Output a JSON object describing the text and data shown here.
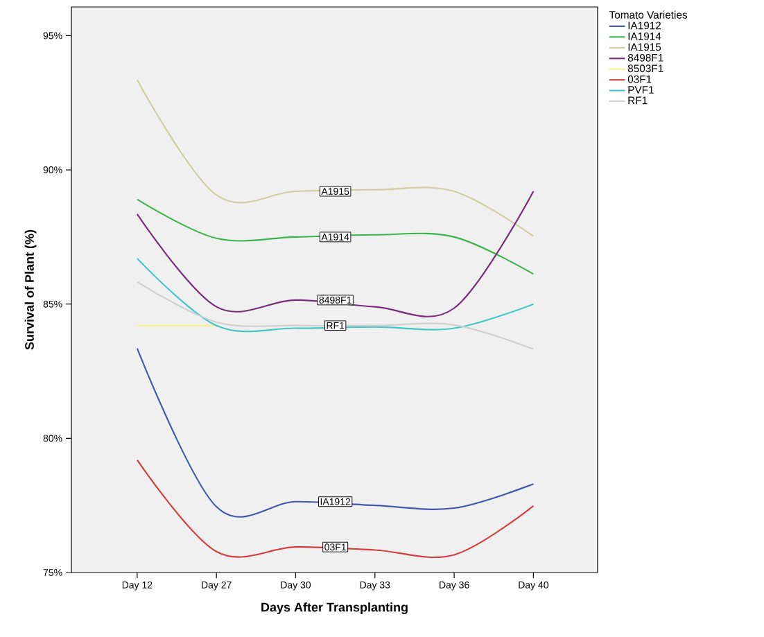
{
  "chart_data": {
    "type": "line",
    "xlabel": "Days After Transplanting",
    "ylabel": "Survival of Plant (%)",
    "legend_title": "Tomato Varieties",
    "categories": [
      "Day 12",
      "Day 27",
      "Day 30",
      "Day 33",
      "Day 36",
      "Day 40"
    ],
    "series": [
      {
        "name": "IA1912",
        "color": "#3e58ac",
        "values": [
          83.35,
          77.45,
          77.64,
          77.5,
          77.4,
          78.3
        ]
      },
      {
        "name": "IA1914",
        "color": "#3ab54a",
        "values": [
          88.9,
          87.45,
          87.5,
          87.58,
          87.5,
          86.12
        ]
      },
      {
        "name": "IA1915",
        "color": "#d2cc9e",
        "values": [
          93.35,
          89.06,
          89.2,
          89.26,
          89.2,
          87.53
        ]
      },
      {
        "name": "8498F1",
        "color": "#7b2b7e",
        "values": [
          88.35,
          84.9,
          85.15,
          84.9,
          84.85,
          89.2
        ]
      },
      {
        "name": "8503F1",
        "color": "#f5f58a",
        "values": [
          84.2,
          84.2,
          null,
          null,
          null,
          null
        ]
      },
      {
        "name": "03F1",
        "color": "#d43d3d",
        "values": [
          79.19,
          75.78,
          75.95,
          75.84,
          75.66,
          77.48
        ]
      },
      {
        "name": "PVF1",
        "color": "#43c6c6",
        "values": [
          86.7,
          84.2,
          84.1,
          84.15,
          84.1,
          85.0
        ]
      },
      {
        "name": "RF1",
        "color": "#cfcfcf",
        "values": [
          85.83,
          84.33,
          84.2,
          84.2,
          84.22,
          83.32
        ]
      }
    ],
    "annotations": [
      {
        "text": "A1915",
        "y": 89.2
      },
      {
        "text": "A1914",
        "y": 87.5
      },
      {
        "text": "8498F1",
        "y": 85.15
      },
      {
        "text": "RF1",
        "y": 84.2
      },
      {
        "text": "IA1912",
        "y": 77.64
      },
      {
        "text": "03F1",
        "y": 75.95
      }
    ],
    "ylim": [
      75,
      96.07
    ],
    "yticks": [
      {
        "value": 75,
        "label": "75%"
      },
      {
        "value": 80,
        "label": "80%"
      },
      {
        "value": 85,
        "label": "85%"
      },
      {
        "value": 90,
        "label": "90%"
      },
      {
        "value": 95,
        "label": "95%"
      }
    ],
    "grid": false,
    "legend": "right",
    "marker": "none",
    "line_style": "solid"
  }
}
